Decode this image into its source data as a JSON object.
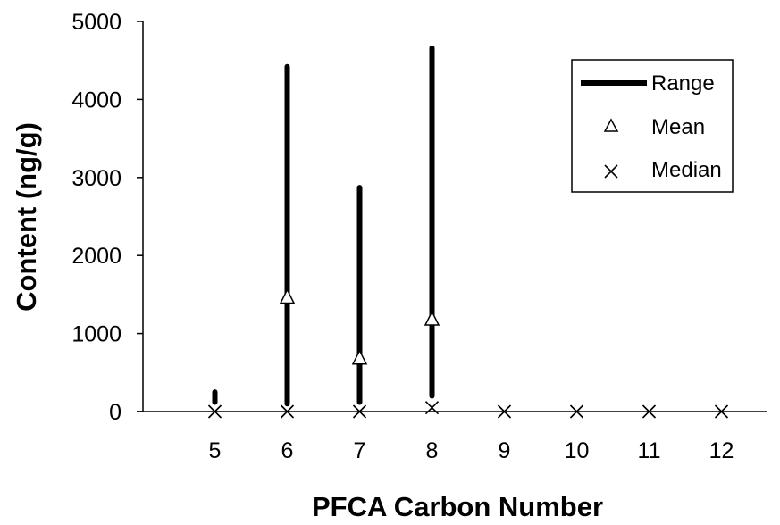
{
  "chart_data": {
    "type": "range",
    "xlabel": "PFCA Carbon Number",
    "ylabel": "Content (ng/g)",
    "categories": [
      "5",
      "6",
      "7",
      "8",
      "9",
      "10",
      "11",
      "12"
    ],
    "y_ticks": [
      "0",
      "1000",
      "2000",
      "3000",
      "4000",
      "5000"
    ],
    "ylim": [
      0,
      5000
    ],
    "grid": false,
    "legend_position": "top-right",
    "series": [
      {
        "name": "Range",
        "marker": "line",
        "low": [
          120,
          100,
          120,
          200,
          null,
          null,
          null,
          null
        ],
        "high": [
          250,
          4420,
          2870,
          4660,
          null,
          null,
          null,
          null
        ]
      },
      {
        "name": "Mean",
        "marker": "triangle",
        "values": [
          null,
          1470,
          690,
          1190,
          null,
          null,
          null,
          null
        ]
      },
      {
        "name": "Median",
        "marker": "x",
        "values": [
          0,
          0,
          0,
          50,
          0,
          0,
          0,
          0
        ]
      }
    ]
  }
}
